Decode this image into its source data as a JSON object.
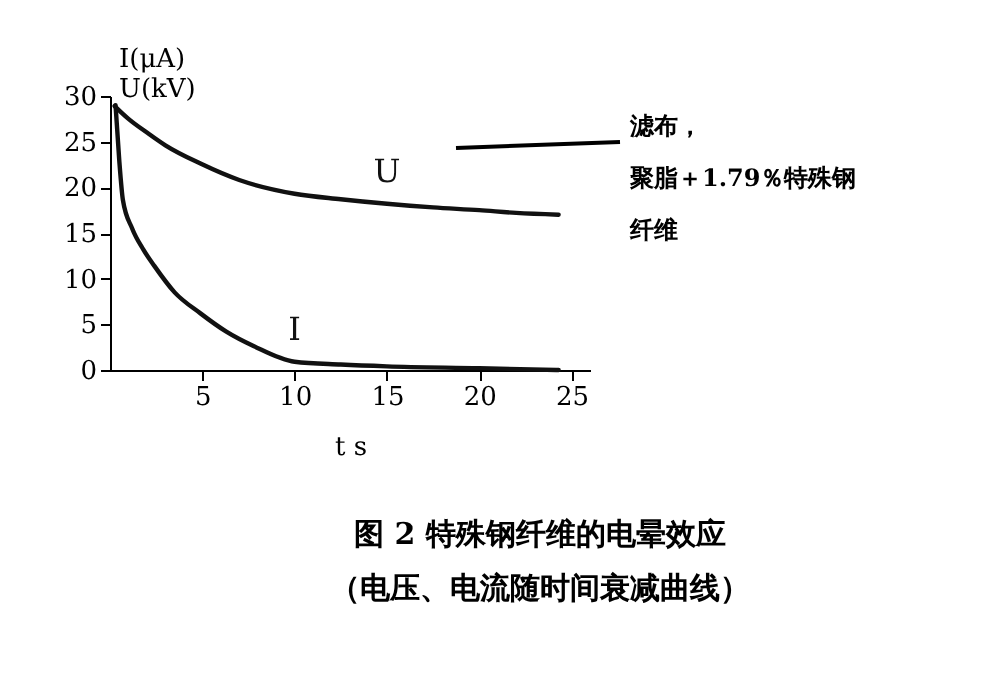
{
  "chart_data": {
    "type": "line",
    "title": "图 2  特殊钢纤维的电晕效应",
    "subtitle": "（电压、电流随时间衰减曲线）",
    "xlabel": "t  s",
    "ylabel": "I(μA)\nU(kV)",
    "annotations": [
      "滤布，",
      "聚脂＋1.79％特殊钢",
      "纤维"
    ],
    "series": [
      {
        "name": "U",
        "color": "#111111",
        "x": [
          0.25,
          1,
          2,
          3,
          4.9,
          7,
          10,
          12.5,
          15,
          17.5,
          20,
          22,
          24.3
        ],
        "values": [
          28.9,
          27.5,
          26,
          24.6,
          22.6,
          20.8,
          19.3,
          18.7,
          18.2,
          17.8,
          17.5,
          17.2,
          17.0
        ]
      },
      {
        "name": "I",
        "color": "#111111",
        "x": [
          0.3,
          0.5,
          0.7,
          1.2,
          1.8,
          2.4,
          3.5,
          4.9,
          6.3,
          7.8,
          10,
          12.5,
          15,
          20,
          24.3
        ],
        "values": [
          29,
          23,
          18.6,
          15.5,
          13.2,
          11.4,
          8.5,
          6.2,
          4.2,
          2.6,
          0.9,
          0.6,
          0.4,
          0.2,
          0
        ]
      }
    ],
    "xlim": [
      0,
      26
    ],
    "xticks": [
      5,
      10,
      15,
      20,
      25
    ],
    "ylim": [
      0,
      30
    ],
    "yticks": [
      0,
      5,
      10,
      15,
      20,
      25,
      30
    ],
    "grid": false,
    "legend": false,
    "marker": "none",
    "line_style": "solid"
  }
}
